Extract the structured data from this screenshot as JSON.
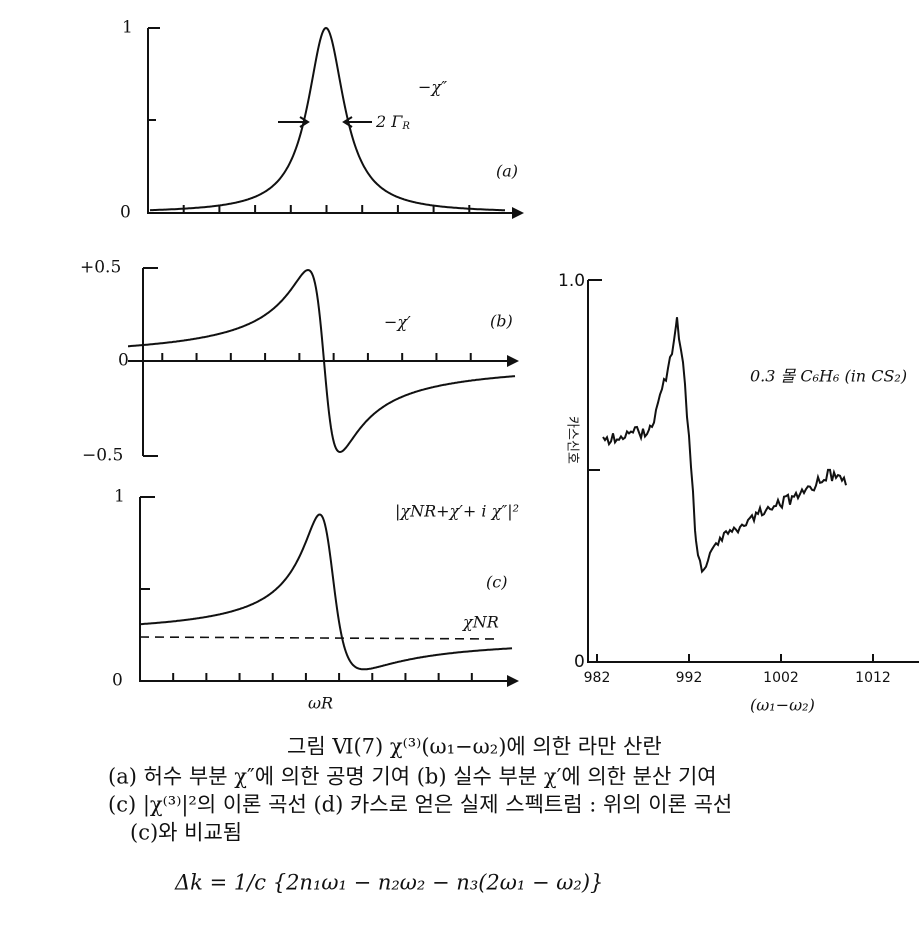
{
  "panel_a": {
    "y_top": "1",
    "y_zero": "0",
    "curve_label": "−χ″",
    "width_label": "2 Γ",
    "width_sub": "R",
    "panel_label": "(a)"
  },
  "panel_b": {
    "y_top": "+0.5",
    "y_zero": "0",
    "y_bottom": "−0.5",
    "curve_label": "−χ′",
    "panel_label": "(b)"
  },
  "panel_c": {
    "y_top": "1",
    "y_zero": "0",
    "curve_label": "|χNR+χ′+ i χ″|²",
    "baseline_label": "χNR",
    "panel_label": "(c)",
    "x_label": "ωR"
  },
  "panel_d": {
    "y_top": "1.0",
    "y_zero": "0",
    "y_axis_title": "카스신호",
    "x_ticks": [
      "982",
      "992",
      "1002",
      "1012"
    ],
    "x_axis_title": "(ω₁−ω₂)",
    "sample_label": "0.3 몰 C₆H₆ (in CS₂)"
  },
  "caption": {
    "title": "그림 Ⅵ(7)  χ⁽³⁾(ω₁−ω₂)에 의한 라만 산란",
    "lines": [
      "(a) 허수 부분 χ″에 의한 공명 기여    (b) 실수 부분 χ′에 의한 분산 기여",
      "(c) |χ⁽³⁾|²의 이론 곡선  (d) 카스로 얻은 실제 스펙트럼 : 위의 이론 곡선",
      "(c)와 비교됨"
    ]
  },
  "equation": "Δk = 1/c {2n₁ω₁ − n₂ω₂ − n₃(2ω₁ − ω₂)}"
}
